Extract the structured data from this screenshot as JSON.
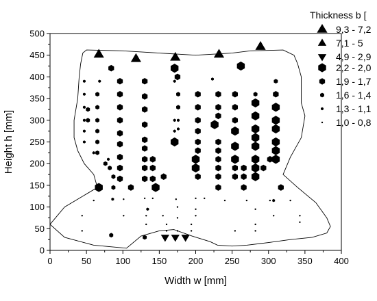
{
  "chart_data": {
    "type": "scatter",
    "xlabel": "Width w [mm]",
    "ylabel": "Height h [mm]",
    "xlim": [
      0,
      400
    ],
    "ylim": [
      0,
      500
    ],
    "x_ticks": [
      "0",
      "50",
      "100",
      "150",
      "200",
      "250",
      "300",
      "350",
      "400"
    ],
    "y_ticks": [
      "0",
      "50",
      "100",
      "150",
      "200",
      "250",
      "300",
      "350",
      "400",
      "450",
      "500"
    ],
    "grid": false,
    "legend_position": "top-right",
    "legend_title": "Thickness b [",
    "legend": [
      {
        "marker": "triangle-up",
        "size": "large",
        "label": "9,3 - 7,2"
      },
      {
        "marker": "triangle-up",
        "size": "medium",
        "label": "7,1 - 5"
      },
      {
        "marker": "triangle-down",
        "size": "medium",
        "label": "4,9 - 2,9"
      },
      {
        "marker": "hexagon",
        "size": "xlarge",
        "label": "2,2 - 2,0"
      },
      {
        "marker": "hexagon",
        "size": "large",
        "label": "1,9 - 1,7"
      },
      {
        "marker": "hexagon",
        "size": "medium",
        "label": "1,6 - 1,4"
      },
      {
        "marker": "hexagon",
        "size": "small",
        "label": "1,3 - 1,1"
      },
      {
        "marker": "hexagon",
        "size": "tiny",
        "label": "1,0 - 0,8"
      }
    ],
    "outline": [
      [
        0,
        60
      ],
      [
        20,
        100
      ],
      [
        45,
        125
      ],
      [
        65,
        145
      ],
      [
        60,
        175
      ],
      [
        47,
        200
      ],
      [
        38,
        230
      ],
      [
        33,
        260
      ],
      [
        33,
        300
      ],
      [
        38,
        350
      ],
      [
        40,
        400
      ],
      [
        42,
        430
      ],
      [
        45,
        455
      ],
      [
        50,
        462
      ],
      [
        100,
        460
      ],
      [
        150,
        455
      ],
      [
        200,
        450
      ],
      [
        250,
        455
      ],
      [
        275,
        460
      ],
      [
        320,
        462
      ],
      [
        335,
        450
      ],
      [
        340,
        430
      ],
      [
        345,
        400
      ],
      [
        345,
        340
      ],
      [
        350,
        310
      ],
      [
        345,
        260
      ],
      [
        330,
        215
      ],
      [
        320,
        175
      ],
      [
        340,
        145
      ],
      [
        365,
        110
      ],
      [
        380,
        75
      ],
      [
        385,
        55
      ],
      [
        380,
        40
      ],
      [
        360,
        30
      ],
      [
        330,
        25
      ],
      [
        300,
        18
      ],
      [
        270,
        12
      ],
      [
        250,
        10
      ],
      [
        230,
        12
      ],
      [
        220,
        20
      ],
      [
        195,
        33
      ],
      [
        170,
        48
      ],
      [
        150,
        45
      ],
      [
        125,
        33
      ],
      [
        105,
        5
      ],
      [
        60,
        12
      ],
      [
        20,
        30
      ],
      [
        0,
        60
      ]
    ],
    "series": [
      {
        "marker": "triangle-up",
        "size": "large",
        "points": [
          [
            67,
            452
          ],
          [
            118,
            442
          ],
          [
            172,
            445
          ],
          [
            232,
            452
          ],
          [
            289,
            470
          ]
        ]
      },
      {
        "marker": "triangle-down",
        "size": "medium",
        "points": [
          [
            158,
            30
          ],
          [
            172,
            30
          ],
          [
            186,
            30
          ]
        ]
      },
      {
        "marker": "hexagon",
        "size": "xlarge",
        "points": [
          [
            171,
            420
          ],
          [
            67,
            145
          ],
          [
            145,
            145
          ],
          [
            171,
            250
          ],
          [
            200,
            190
          ],
          [
            200,
            210
          ],
          [
            226,
            290
          ],
          [
            254,
            210
          ],
          [
            254,
            240
          ],
          [
            254,
            275
          ],
          [
            282,
            170
          ],
          [
            282,
            190
          ],
          [
            282,
            210
          ],
          [
            282,
            240
          ],
          [
            282,
            260
          ],
          [
            282,
            280
          ],
          [
            282,
            310
          ],
          [
            282,
            340
          ],
          [
            310,
            210
          ],
          [
            310,
            230
          ],
          [
            310,
            250
          ],
          [
            310,
            280
          ],
          [
            310,
            300
          ],
          [
            310,
            330
          ],
          [
            262,
            425
          ]
        ]
      },
      {
        "marker": "hexagon",
        "size": "large",
        "points": [
          [
            84,
            420
          ],
          [
            130,
            390
          ],
          [
            175,
            400
          ],
          [
            96,
            390
          ],
          [
            96,
            360
          ],
          [
            96,
            330
          ],
          [
            96,
            300
          ],
          [
            96,
            270
          ],
          [
            96,
            245
          ],
          [
            96,
            215
          ],
          [
            96,
            190
          ],
          [
            96,
            165
          ],
          [
            111,
            145
          ],
          [
            130,
            355
          ],
          [
            130,
            325
          ],
          [
            130,
            290
          ],
          [
            130,
            255
          ],
          [
            130,
            235
          ],
          [
            130,
            210
          ],
          [
            130,
            190
          ],
          [
            130,
            165
          ],
          [
            141,
            210
          ],
          [
            141,
            190
          ],
          [
            141,
            165
          ],
          [
            156,
            170
          ],
          [
            203,
            360
          ],
          [
            203,
            330
          ],
          [
            203,
            300
          ],
          [
            203,
            275
          ],
          [
            203,
            250
          ],
          [
            203,
            230
          ],
          [
            203,
            170
          ],
          [
            231,
            360
          ],
          [
            231,
            330
          ],
          [
            231,
            310
          ],
          [
            231,
            250
          ],
          [
            231,
            230
          ],
          [
            231,
            210
          ],
          [
            231,
            190
          ],
          [
            231,
            170
          ],
          [
            231,
            145
          ],
          [
            254,
            360
          ],
          [
            254,
            330
          ],
          [
            254,
            300
          ],
          [
            254,
            190
          ],
          [
            254,
            170
          ],
          [
            266,
            190
          ],
          [
            266,
            170
          ],
          [
            266,
            145
          ],
          [
            293,
            190
          ],
          [
            302,
            210
          ],
          [
            310,
            360
          ],
          [
            317,
            145
          ]
        ]
      },
      {
        "marker": "hexagon",
        "size": "medium",
        "points": [
          [
            65,
            360
          ],
          [
            65,
            330
          ],
          [
            65,
            300
          ],
          [
            65,
            275
          ],
          [
            65,
            250
          ],
          [
            65,
            225
          ],
          [
            52,
            300
          ],
          [
            52,
            325
          ],
          [
            87,
            170
          ],
          [
            87,
            145
          ],
          [
            176,
            360
          ],
          [
            176,
            330
          ],
          [
            82,
            190
          ],
          [
            282,
            360
          ],
          [
            282,
            335
          ],
          [
            310,
            390
          ],
          [
            84,
            35
          ],
          [
            130,
            30
          ],
          [
            76,
            200
          ]
        ]
      },
      {
        "marker": "hexagon",
        "size": "small",
        "points": [
          [
            47,
            390
          ],
          [
            47,
            360
          ],
          [
            47,
            330
          ],
          [
            47,
            300
          ],
          [
            47,
            275
          ],
          [
            47,
            250
          ],
          [
            60,
            225
          ],
          [
            68,
            390
          ],
          [
            171,
            390
          ],
          [
            171,
            300
          ],
          [
            171,
            275
          ],
          [
            176,
            300
          ],
          [
            176,
            280
          ],
          [
            223,
            395
          ],
          [
            80,
            210
          ],
          [
            86,
            118
          ],
          [
            134,
            95
          ],
          [
            307,
            115
          ]
        ]
      },
      {
        "marker": "hexagon",
        "size": "tiny",
        "points": [
          [
            44,
            80
          ],
          [
            44,
            45
          ],
          [
            60,
            115
          ],
          [
            101,
            118
          ],
          [
            101,
            80
          ],
          [
            132,
            80
          ],
          [
            132,
            60
          ],
          [
            160,
            60
          ],
          [
            160,
            45
          ],
          [
            175,
            75
          ],
          [
            175,
            100
          ],
          [
            194,
            60
          ],
          [
            194,
            45
          ],
          [
            200,
            120
          ],
          [
            200,
            80
          ],
          [
            200,
            95
          ],
          [
            212,
            120
          ],
          [
            240,
            115
          ],
          [
            254,
            45
          ],
          [
            270,
            115
          ],
          [
            282,
            95
          ],
          [
            282,
            60
          ],
          [
            282,
            45
          ],
          [
            302,
            115
          ],
          [
            307,
            80
          ],
          [
            330,
            115
          ],
          [
            343,
            80
          ],
          [
            343,
            65
          ],
          [
            130,
            120
          ],
          [
            141,
            120
          ],
          [
            173,
            118
          ],
          [
            175,
            45
          ],
          [
            155,
            80
          ]
        ]
      }
    ]
  }
}
